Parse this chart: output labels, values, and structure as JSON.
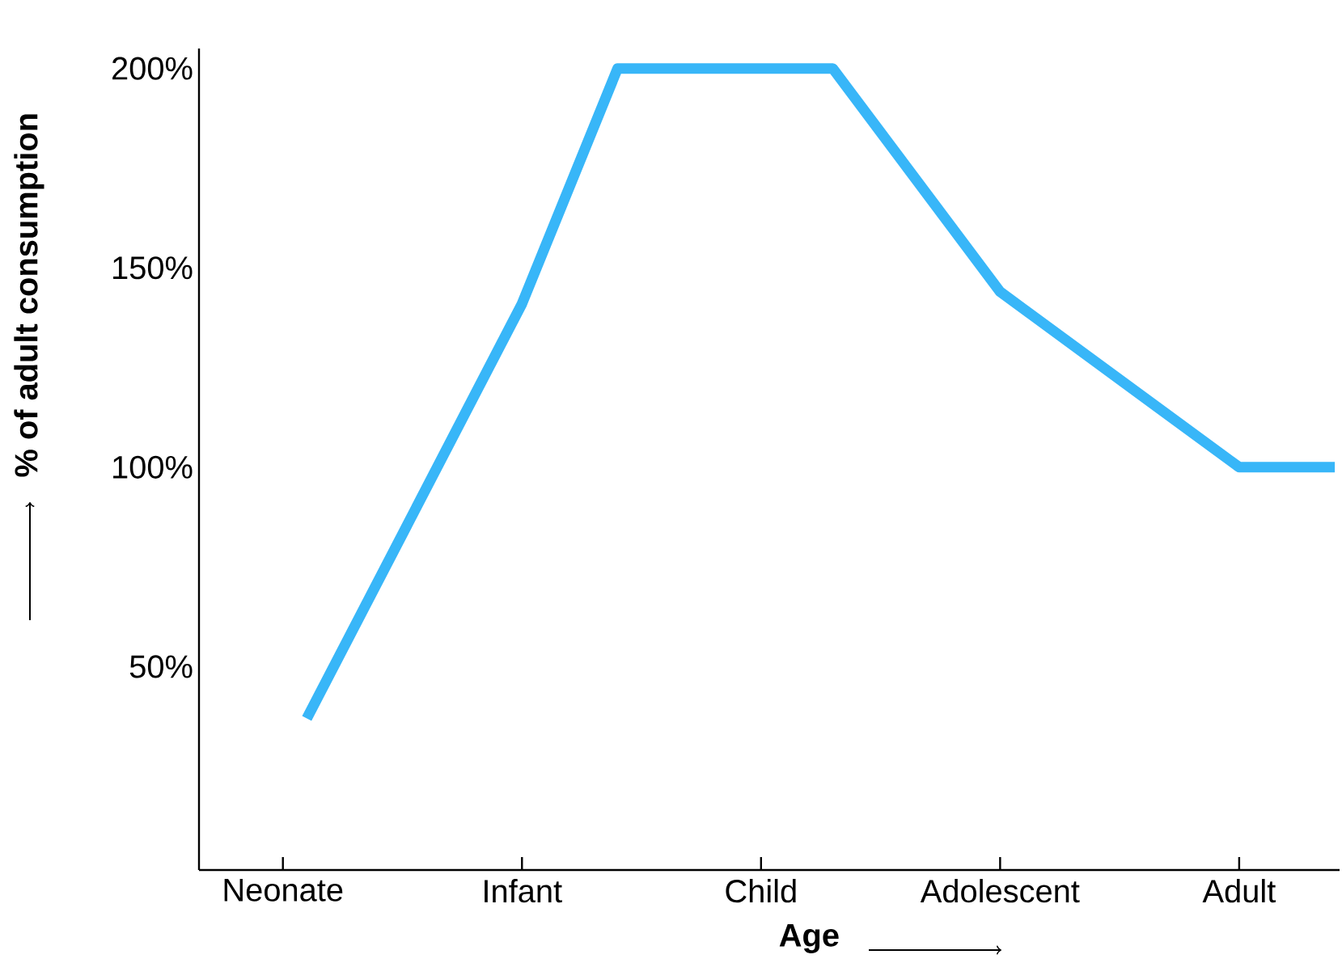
{
  "chart_data": {
    "type": "line",
    "xlabel": "Age",
    "ylabel": "% of adult consumption",
    "categories": [
      "Neonate",
      null,
      null,
      null,
      null,
      null,
      null,
      null,
      null,
      null,
      "Infant",
      null,
      null,
      null,
      null,
      null,
      null,
      null,
      null,
      null,
      "Child",
      null,
      null,
      null,
      null,
      null,
      null,
      null,
      null,
      null,
      "Adolescent",
      null,
      null,
      null,
      null,
      null,
      null,
      null,
      null,
      null,
      "Adult",
      null,
      null,
      null,
      null
    ],
    "ylim": [
      -1,
      205
    ],
    "yticks": [
      {
        "value": 50,
        "label": "50%"
      },
      {
        "value": 100,
        "label": "100%"
      },
      {
        "value": 150,
        "label": "150%"
      },
      {
        "value": 200,
        "label": "200%"
      }
    ],
    "series": [
      {
        "color": "#38b6f8",
        "values": [
          null,
          37,
          null,
          null,
          null,
          null,
          null,
          null,
          null,
          null,
          141,
          null,
          null,
          null,
          200,
          null,
          null,
          null,
          null,
          null,
          null,
          null,
          null,
          200,
          null,
          null,
          null,
          null,
          null,
          null,
          144,
          null,
          null,
          null,
          null,
          null,
          null,
          null,
          null,
          null,
          100,
          null,
          null,
          null,
          100
        ]
      }
    ],
    "marker": "none",
    "line_style": "solid",
    "grid": false
  }
}
